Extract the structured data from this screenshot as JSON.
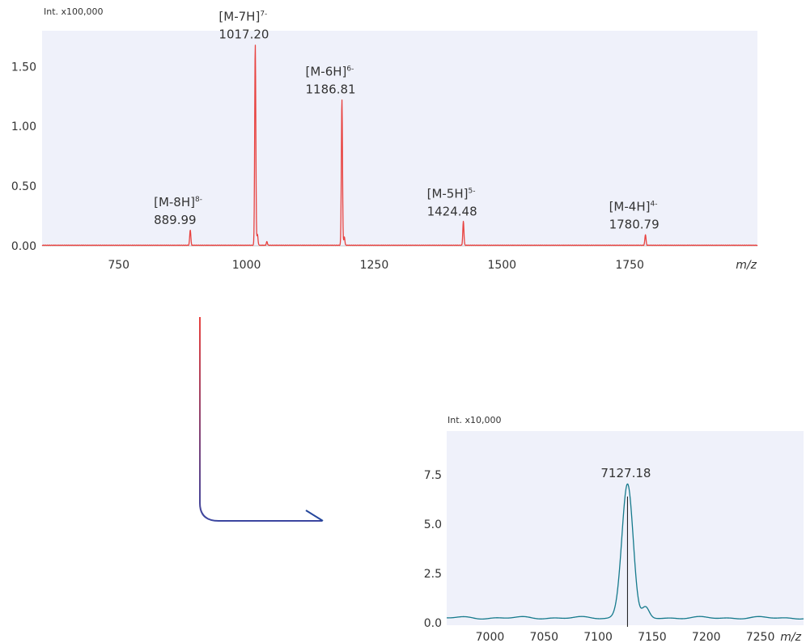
{
  "chart_data": [
    {
      "type": "line",
      "ylabel": "Int. x100,000",
      "xunit": "m/z",
      "xlim": [
        600,
        2000
      ],
      "ylim": [
        0,
        1.8
      ],
      "yticks": [
        "0.00",
        "0.50",
        "1.00",
        "1.50"
      ],
      "ytick_values": [
        0,
        0.5,
        1.0,
        1.5
      ],
      "xticks": [
        "750",
        "1000",
        "1250",
        "1500",
        "1750"
      ],
      "xtick_values": [
        750,
        1000,
        1250,
        1500,
        1750
      ],
      "grid": false,
      "series": [
        {
          "color": "#e8423f",
          "baseline": 0.005,
          "peaks": [
            {
              "x": 889.99,
              "y": 0.13,
              "ion": "[M-8H]",
              "charge": "8-",
              "label": "889.99"
            },
            {
              "x": 1017.2,
              "y": 1.68,
              "ion": "[M-7H]",
              "charge": "7-",
              "label": "1017.20"
            },
            {
              "x": 1021.5,
              "y": 0.09
            },
            {
              "x": 1040.0,
              "y": 0.03
            },
            {
              "x": 1186.81,
              "y": 1.22,
              "ion": "[M-6H]",
              "charge": "6-",
              "label": "1186.81"
            },
            {
              "x": 1191.5,
              "y": 0.07
            },
            {
              "x": 1424.48,
              "y": 0.2,
              "ion": "[M-5H]",
              "charge": "5-",
              "label": "1424.48"
            },
            {
              "x": 1780.79,
              "y": 0.09,
              "ion": "[M-4H]",
              "charge": "4-",
              "label": "1780.79"
            }
          ]
        }
      ]
    },
    {
      "type": "line",
      "ylabel": "Int. x10,000",
      "xunit": "m/z",
      "xlim": [
        6960,
        7290
      ],
      "ylim": [
        0,
        9.7
      ],
      "yticks": [
        "0.0",
        "2.5",
        "5.0",
        "7.5"
      ],
      "ytick_values": [
        0,
        2.5,
        5.0,
        7.5
      ],
      "xticks": [
        "7000",
        "7050",
        "7100",
        "7150",
        "7200",
        "7250"
      ],
      "xtick_values": [
        7000,
        7050,
        7100,
        7150,
        7200,
        7250
      ],
      "grid": false,
      "series": [
        {
          "color": "#157a8c",
          "peaks": [
            {
              "x": 7127.18,
              "y": 6.8,
              "label": "7127.18"
            },
            {
              "x": 7144,
              "y": 0.5
            }
          ]
        }
      ]
    }
  ],
  "colors": {
    "plot_bg": "#eff1fa",
    "arrow_start": "#e8423f",
    "arrow_end": "#25479c"
  }
}
